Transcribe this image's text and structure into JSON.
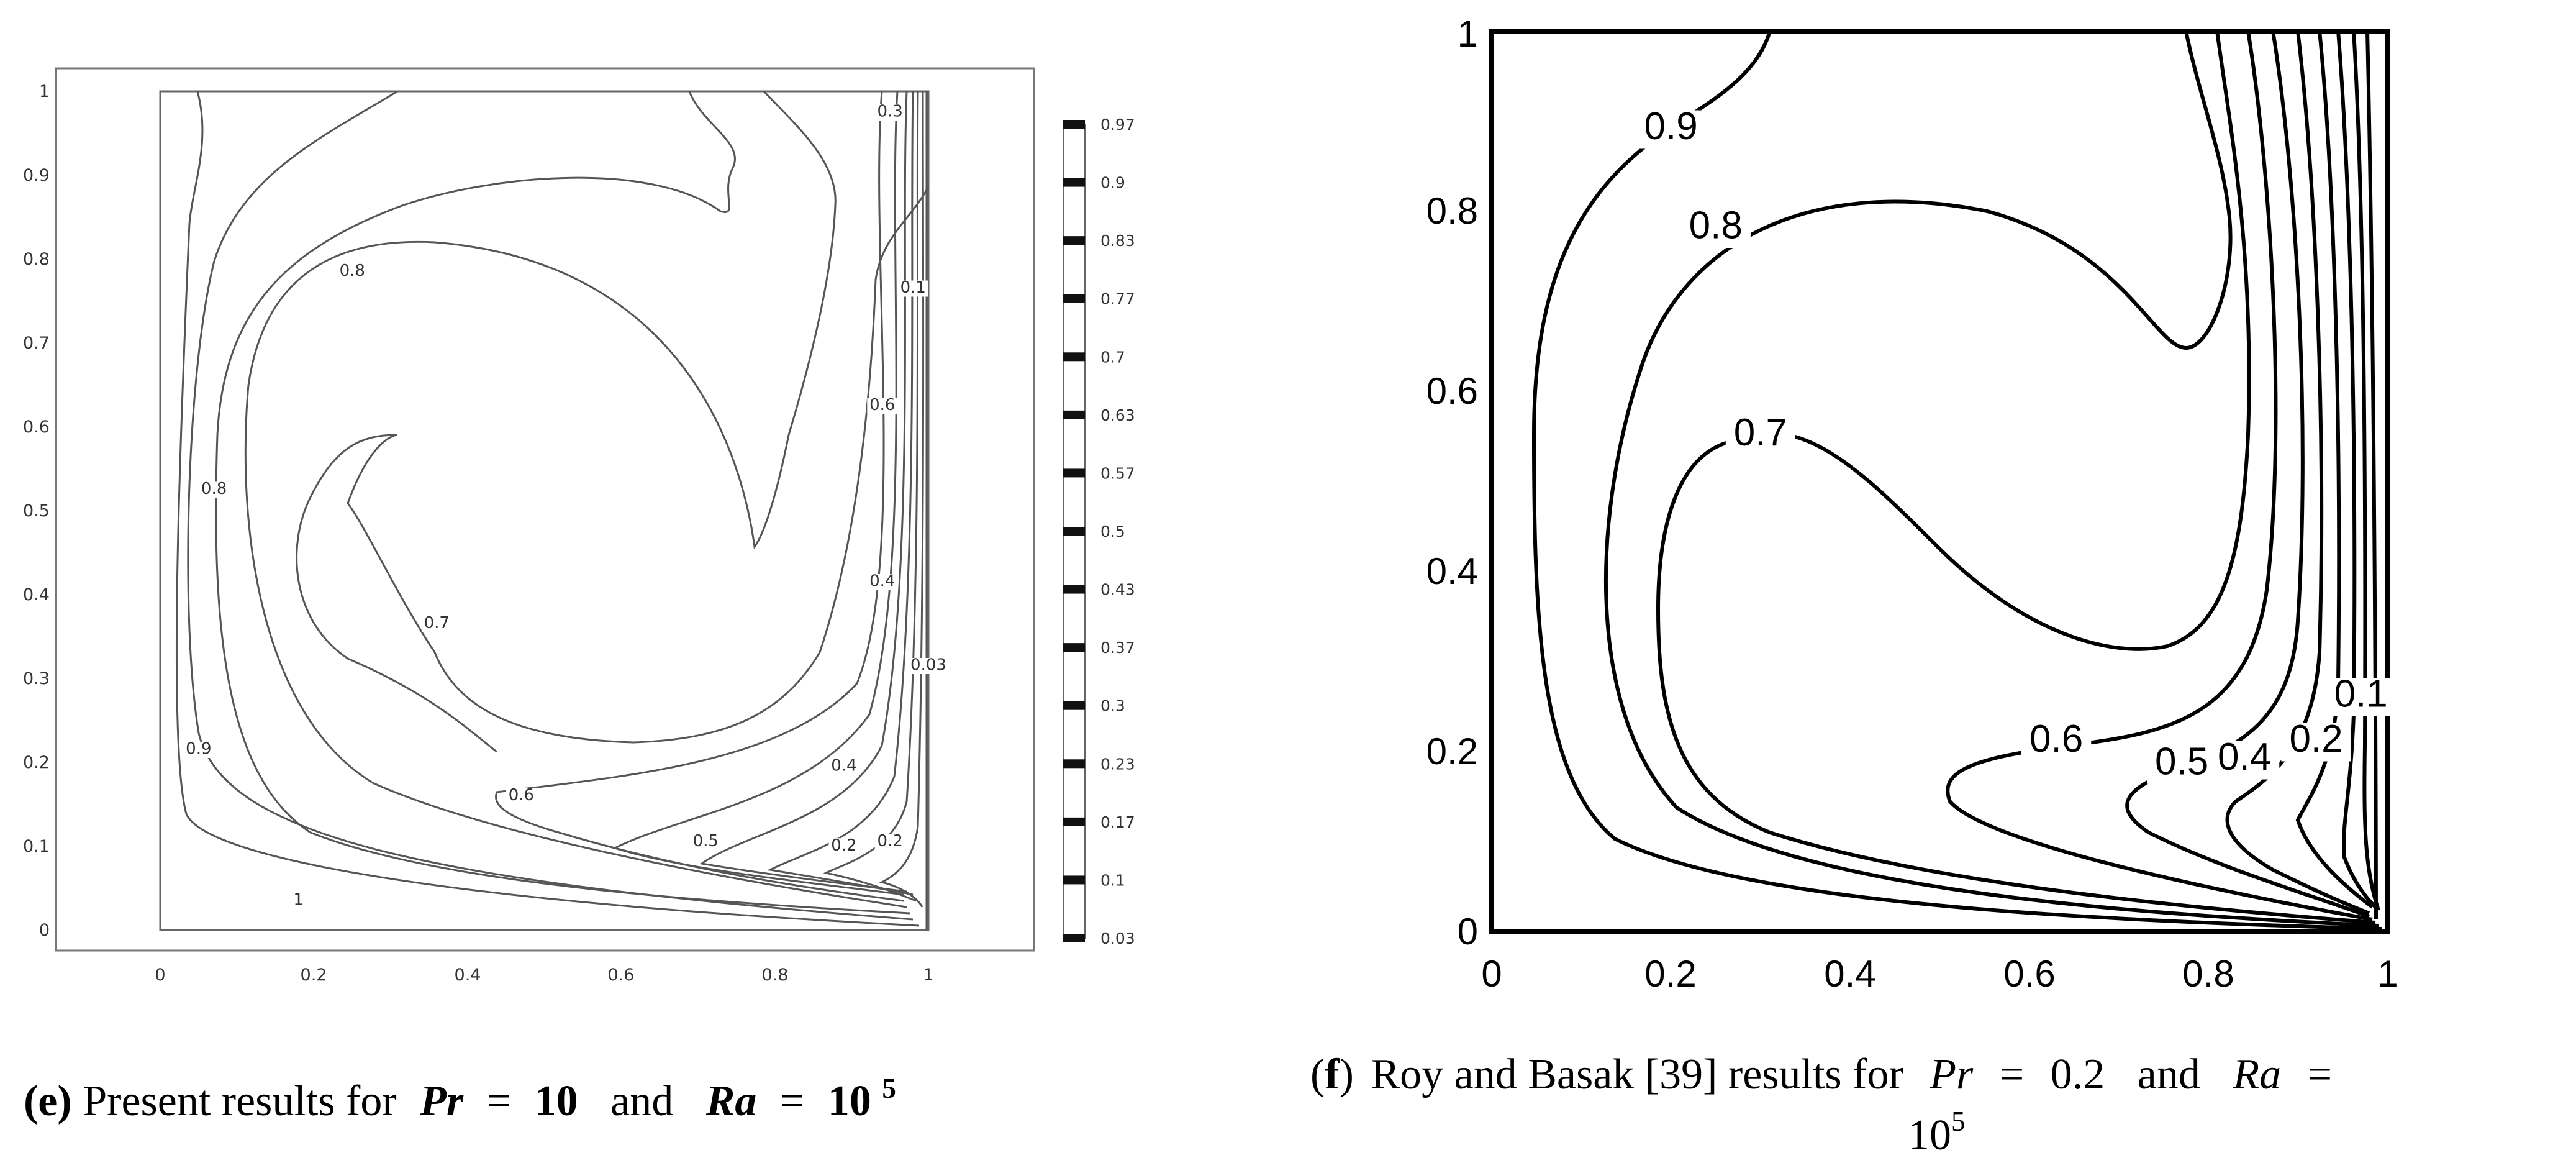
{
  "chart_data": [
    {
      "type": "contour",
      "panel": "e",
      "caption": {
        "letter": "e",
        "text": "Present results for",
        "pr_label": "Pr",
        "pr_value": "10",
        "and": "and",
        "ra_label": "Ra",
        "ra_base": "10",
        "ra_exp": "5"
      },
      "xlim": [
        0,
        1
      ],
      "ylim": [
        0,
        1
      ],
      "x_ticks": [
        "0",
        "0.2",
        "0.4",
        "0.6",
        "0.8",
        "1"
      ],
      "y_ticks": [
        "0",
        "0.1",
        "0.2",
        "0.3",
        "0.4",
        "0.5",
        "0.6",
        "0.7",
        "0.8",
        "0.9",
        "1"
      ],
      "colorbar_ticks": [
        "0.97",
        "0.9",
        "0.83",
        "0.77",
        "0.7",
        "0.63",
        "0.57",
        "0.5",
        "0.43",
        "0.37",
        "0.3",
        "0.23",
        "0.17",
        "0.1",
        "0.03"
      ],
      "contour_labels": [
        {
          "text": "1",
          "x": 0.18,
          "y": 0.03
        },
        {
          "text": "0.9",
          "x": 0.05,
          "y": 0.21
        },
        {
          "text": "0.8",
          "x": 0.07,
          "y": 0.52
        },
        {
          "text": "0.8",
          "x": 0.25,
          "y": 0.78
        },
        {
          "text": "0.7",
          "x": 0.36,
          "y": 0.36
        },
        {
          "text": "0.6",
          "x": 0.47,
          "y": 0.155
        },
        {
          "text": "0.5",
          "x": 0.71,
          "y": 0.1
        },
        {
          "text": "0.4",
          "x": 0.89,
          "y": 0.19
        },
        {
          "text": "0.2",
          "x": 0.89,
          "y": 0.095
        },
        {
          "text": "0.2",
          "x": 0.95,
          "y": 0.1
        },
        {
          "text": "0.4",
          "x": 0.94,
          "y": 0.41
        },
        {
          "text": "0.6",
          "x": 0.94,
          "y": 0.62
        },
        {
          "text": "0.1",
          "x": 0.98,
          "y": 0.76
        },
        {
          "text": "0.3",
          "x": 0.95,
          "y": 0.97
        },
        {
          "text": "0.03",
          "x": 1.0,
          "y": 0.31
        }
      ]
    },
    {
      "type": "contour",
      "panel": "f",
      "caption": {
        "letter": "f",
        "text": "Roy and Basak [39] results for",
        "pr_label": "Pr",
        "pr_value": "0.2",
        "and": "and",
        "ra_label": "Ra",
        "eq": "=",
        "ra_base": "10",
        "ra_exp": "5"
      },
      "xlim": [
        0,
        1
      ],
      "ylim": [
        0,
        1
      ],
      "x_ticks": [
        "0",
        "0.2",
        "0.4",
        "0.6",
        "0.8",
        "1"
      ],
      "y_ticks": [
        "0",
        "0.2",
        "0.4",
        "0.6",
        "0.8",
        "1"
      ],
      "contour_labels": [
        {
          "text": "0.9",
          "x": 0.2,
          "y": 0.88
        },
        {
          "text": "0.8",
          "x": 0.25,
          "y": 0.77
        },
        {
          "text": "0.7",
          "x": 0.3,
          "y": 0.54
        },
        {
          "text": "0.6",
          "x": 0.63,
          "y": 0.2
        },
        {
          "text": "0.5",
          "x": 0.77,
          "y": 0.175
        },
        {
          "text": "0.4",
          "x": 0.84,
          "y": 0.18
        },
        {
          "text": "0.2",
          "x": 0.92,
          "y": 0.2
        },
        {
          "text": "0.1",
          "x": 0.97,
          "y": 0.25
        }
      ]
    }
  ]
}
